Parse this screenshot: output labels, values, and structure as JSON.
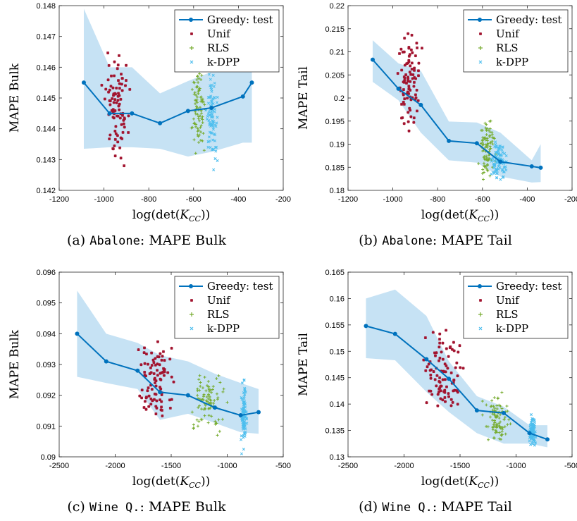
{
  "colors": {
    "greedy": "#0072BD",
    "band": "#c6e2f4",
    "unif": "#A2142F",
    "rls": "#77AC30",
    "kdpp": "#4DBEEE"
  },
  "legend": [
    "Greedy: test",
    "Unif",
    "RLS",
    "k-DPP"
  ],
  "chart_data": [
    {
      "type": "scatter",
      "xlabel": "log(det(K_CC))",
      "ylabel": "MAPE Bulk",
      "xlim": [
        -1200,
        -200
      ],
      "ylim": [
        0.142,
        0.148
      ],
      "xticks": [
        -1200,
        -1000,
        -800,
        -600,
        -400,
        -200
      ],
      "yticks": [
        0.142,
        0.143,
        0.144,
        0.145,
        0.146,
        0.147,
        0.148
      ],
      "series": [
        {
          "name": "Greedy: test",
          "type": "line",
          "x": [
            -1090,
            -975,
            -875,
            -750,
            -625,
            -520,
            -380,
            -340
          ],
          "y": [
            0.1455,
            0.1445,
            0.1445,
            0.14418,
            0.14458,
            0.14468,
            0.14505,
            0.1455
          ]
        },
        {
          "type": "band",
          "x": [
            -1090,
            -975,
            -875,
            -750,
            -625,
            -520,
            -380,
            -340
          ],
          "lower": [
            0.14335,
            0.1434,
            0.1434,
            0.14335,
            0.1431,
            0.14325,
            0.14355,
            0.14355
          ],
          "upper": [
            0.1479,
            0.146,
            0.146,
            0.14515,
            0.14555,
            0.14585,
            0.14685,
            0.14765
          ]
        },
        {
          "name": "Unif",
          "cloud": {
            "x": [
              -1010,
              -880
            ],
            "y": [
              0.1428,
              0.1466
            ],
            "n": 90
          }
        },
        {
          "name": "RLS",
          "cloud": {
            "x": [
              -610,
              -540
            ],
            "y": [
              0.1431,
              0.1463
            ],
            "n": 90
          }
        },
        {
          "name": "k-DPP",
          "cloud": {
            "x": [
              -545,
              -490
            ],
            "y": [
              0.14265,
              0.1462
            ],
            "n": 90
          }
        }
      ],
      "legend_position": "top-right"
    },
    {
      "type": "scatter",
      "xlabel": "log(det(K_CC))",
      "ylabel": "MAPE Tail",
      "xlim": [
        -1200,
        -200
      ],
      "ylim": [
        0.18,
        0.22
      ],
      "xticks": [
        -1200,
        -1000,
        -800,
        -600,
        -400,
        -200
      ],
      "yticks": [
        0.18,
        0.185,
        0.19,
        0.195,
        0.2,
        0.205,
        0.21,
        0.215,
        0.22
      ],
      "series": [
        {
          "name": "Greedy: test",
          "type": "line",
          "x": [
            -1090,
            -975,
            -875,
            -750,
            -625,
            -520,
            -380,
            -340
          ],
          "y": [
            0.2083,
            0.202,
            0.1985,
            0.1907,
            0.1902,
            0.1862,
            0.1852,
            0.1849
          ]
        },
        {
          "type": "band",
          "x": [
            -1090,
            -975,
            -875,
            -750,
            -625,
            -520,
            -380,
            -340
          ],
          "lower": [
            0.2035,
            0.1995,
            0.1925,
            0.1865,
            0.186,
            0.183,
            0.1817,
            0.1818
          ],
          "upper": [
            0.2125,
            0.2075,
            0.2059,
            0.1949,
            0.1947,
            0.1925,
            0.1865,
            0.19
          ]
        },
        {
          "name": "Unif",
          "cloud": {
            "x": [
              -990,
              -870
            ],
            "y": [
              0.1895,
              0.2155
            ],
            "n": 90
          }
        },
        {
          "name": "RLS",
          "cloud": {
            "x": [
              -620,
              -540
            ],
            "y": [
              0.182,
              0.1965
            ],
            "n": 90
          }
        },
        {
          "name": "k-DPP",
          "cloud": {
            "x": [
              -560,
              -490
            ],
            "y": [
              0.181,
              0.192
            ],
            "n": 90
          }
        }
      ],
      "legend_position": "top-right"
    },
    {
      "type": "scatter",
      "xlabel": "log(det(K_CC))",
      "ylabel": "MAPE Bulk",
      "xlim": [
        -2500,
        -500
      ],
      "ylim": [
        0.09,
        0.096
      ],
      "xticks": [
        -2500,
        -2000,
        -1500,
        -1000,
        -500
      ],
      "yticks": [
        0.09,
        0.091,
        0.092,
        0.093,
        0.094,
        0.095,
        0.096
      ],
      "series": [
        {
          "name": "Greedy: test",
          "type": "line",
          "x": [
            -2340,
            -2080,
            -1800,
            -1600,
            -1350,
            -1110,
            -880,
            -720
          ],
          "y": [
            0.094,
            0.0931,
            0.0928,
            0.0921,
            0.092,
            0.0916,
            0.09135,
            0.09145
          ]
        },
        {
          "type": "band",
          "x": [
            -2340,
            -2080,
            -1800,
            -1600,
            -1350,
            -1110,
            -880,
            -720
          ],
          "lower": [
            0.0926,
            0.0924,
            0.0922,
            0.0912,
            0.0914,
            0.0911,
            0.0908,
            0.09075
          ],
          "upper": [
            0.0954,
            0.094,
            0.0937,
            0.0933,
            0.0931,
            0.0927,
            0.0924,
            0.0922
          ]
        },
        {
          "name": "Unif",
          "cloud": {
            "x": [
              -1830,
              -1430
            ],
            "y": [
              0.0907,
              0.0941
            ],
            "n": 90
          }
        },
        {
          "name": "RLS",
          "cloud": {
            "x": [
              -1350,
              -1000
            ],
            "y": [
              0.0907,
              0.093
            ],
            "n": 90
          }
        },
        {
          "name": "k-DPP",
          "cloud": {
            "x": [
              -880,
              -820
            ],
            "y": [
              0.0901,
              0.0925
            ],
            "n": 90
          }
        }
      ],
      "legend_position": "top-right"
    },
    {
      "type": "scatter",
      "xlabel": "log(det(K_CC))",
      "ylabel": "MAPE Tail",
      "xlim": [
        -2500,
        -500
      ],
      "ylim": [
        0.13,
        0.165
      ],
      "xticks": [
        -2500,
        -2000,
        -1500,
        -1000,
        -500
      ],
      "yticks": [
        0.13,
        0.135,
        0.14,
        0.145,
        0.15,
        0.155,
        0.16,
        0.165
      ],
      "series": [
        {
          "name": "Greedy: test",
          "type": "line",
          "x": [
            -2340,
            -2080,
            -1800,
            -1600,
            -1350,
            -1110,
            -880,
            -720
          ],
          "y": [
            0.1548,
            0.1533,
            0.1485,
            0.1448,
            0.1388,
            0.1383,
            0.1345,
            0.1333
          ]
        },
        {
          "type": "band",
          "x": [
            -2340,
            -2080,
            -1800,
            -1600,
            -1350,
            -1110,
            -880,
            -720
          ],
          "lower": [
            0.1487,
            0.1483,
            0.1423,
            0.1385,
            0.1345,
            0.1325,
            0.1325,
            0.1318
          ],
          "upper": [
            0.16,
            0.1617,
            0.1567,
            0.1481,
            0.1415,
            0.1395,
            0.136,
            0.136
          ]
        },
        {
          "name": "Unif",
          "cloud": {
            "x": [
              -1830,
              -1440
            ],
            "y": [
              0.1383,
              0.1552
            ],
            "n": 90
          }
        },
        {
          "name": "RLS",
          "cloud": {
            "x": [
              -1300,
              -1050
            ],
            "y": [
              0.1317,
              0.1422
            ],
            "n": 90
          }
        },
        {
          "name": "k-DPP",
          "cloud": {
            "x": [
              -890,
              -820
            ],
            "y": [
              0.1318,
              0.138
            ],
            "n": 90
          }
        }
      ],
      "legend_position": "top-right"
    }
  ],
  "captions": [
    {
      "label": "(a)",
      "dataset": "Abalone",
      "rest": ": MAPE Bulk"
    },
    {
      "label": "(b)",
      "dataset": "Abalone",
      "rest": ": MAPE Tail"
    },
    {
      "label": "(c)",
      "dataset": "Wine Q.",
      "rest": ": MAPE Bulk"
    },
    {
      "label": "(d)",
      "dataset": "Wine Q.",
      "rest": ": MAPE Tail"
    }
  ]
}
